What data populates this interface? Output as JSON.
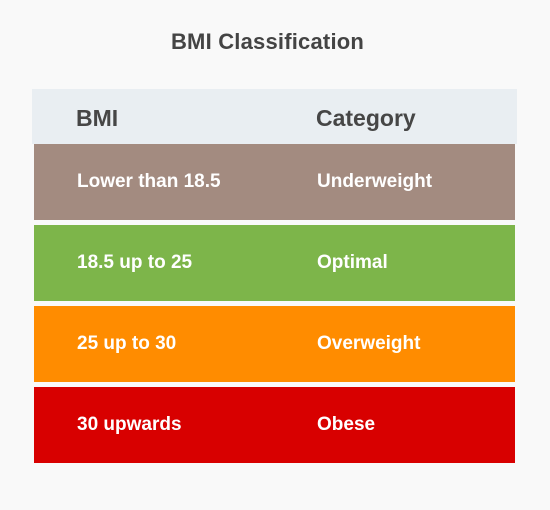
{
  "title": "BMI Classification",
  "table": {
    "headers": [
      "BMI",
      "Category"
    ],
    "rows": [
      {
        "bmi": "Lower than 18.5",
        "category": "Underweight",
        "color": "#a38b80"
      },
      {
        "bmi": "18.5 up to 25",
        "category": "Optimal",
        "color": "#7db54a"
      },
      {
        "bmi": "25 up to 30",
        "category": "Overweight",
        "color": "#ff8c00"
      },
      {
        "bmi": "30 upwards",
        "category": "Obese",
        "color": "#d80000"
      }
    ]
  }
}
